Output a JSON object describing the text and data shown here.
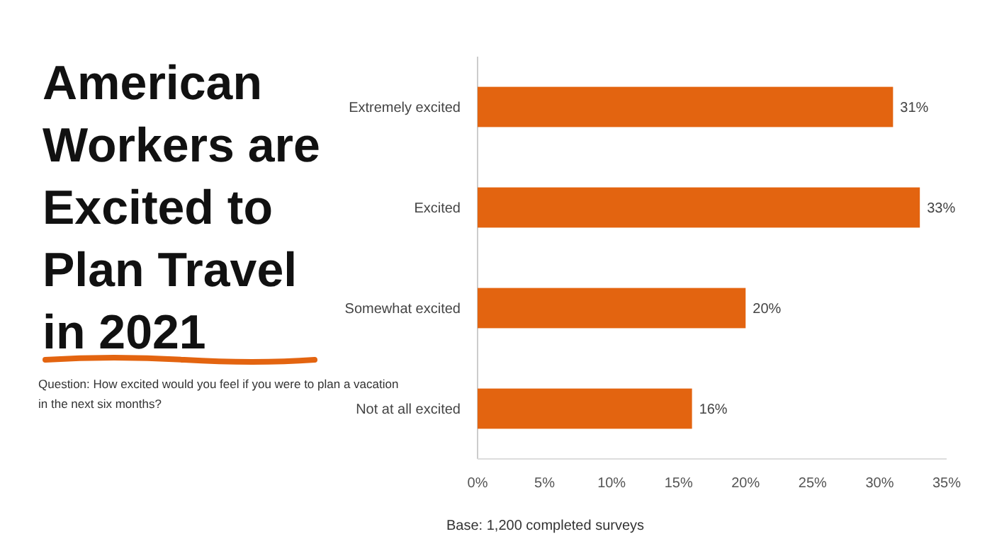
{
  "chart_data": {
    "type": "bar",
    "orientation": "horizontal",
    "title": "American Workers are Excited to Plan Travel in 2021",
    "annotations": [
      "Question: How excited would you feel if you were to plan a vacation in the next six months?",
      "Base: 1,200 completed surveys"
    ],
    "categories": [
      "Extremely excited",
      "Excited",
      "Somewhat excited",
      "Not at all excited"
    ],
    "values": [
      31,
      33,
      20,
      16
    ],
    "value_labels": [
      "31%",
      "33%",
      "20%",
      "16%"
    ],
    "color": "#e36410",
    "xlim": [
      0,
      35
    ],
    "xticks": [
      {
        "value": 0,
        "label": "0%"
      },
      {
        "value": 5,
        "label": "5%"
      },
      {
        "value": 10,
        "label": "10%"
      },
      {
        "value": 15,
        "label": "15%"
      },
      {
        "value": 20,
        "label": "20%"
      },
      {
        "value": 25,
        "label": "25%"
      },
      {
        "value": 30,
        "label": "30%"
      },
      {
        "value": 35,
        "label": "35%"
      }
    ],
    "grid": false
  }
}
